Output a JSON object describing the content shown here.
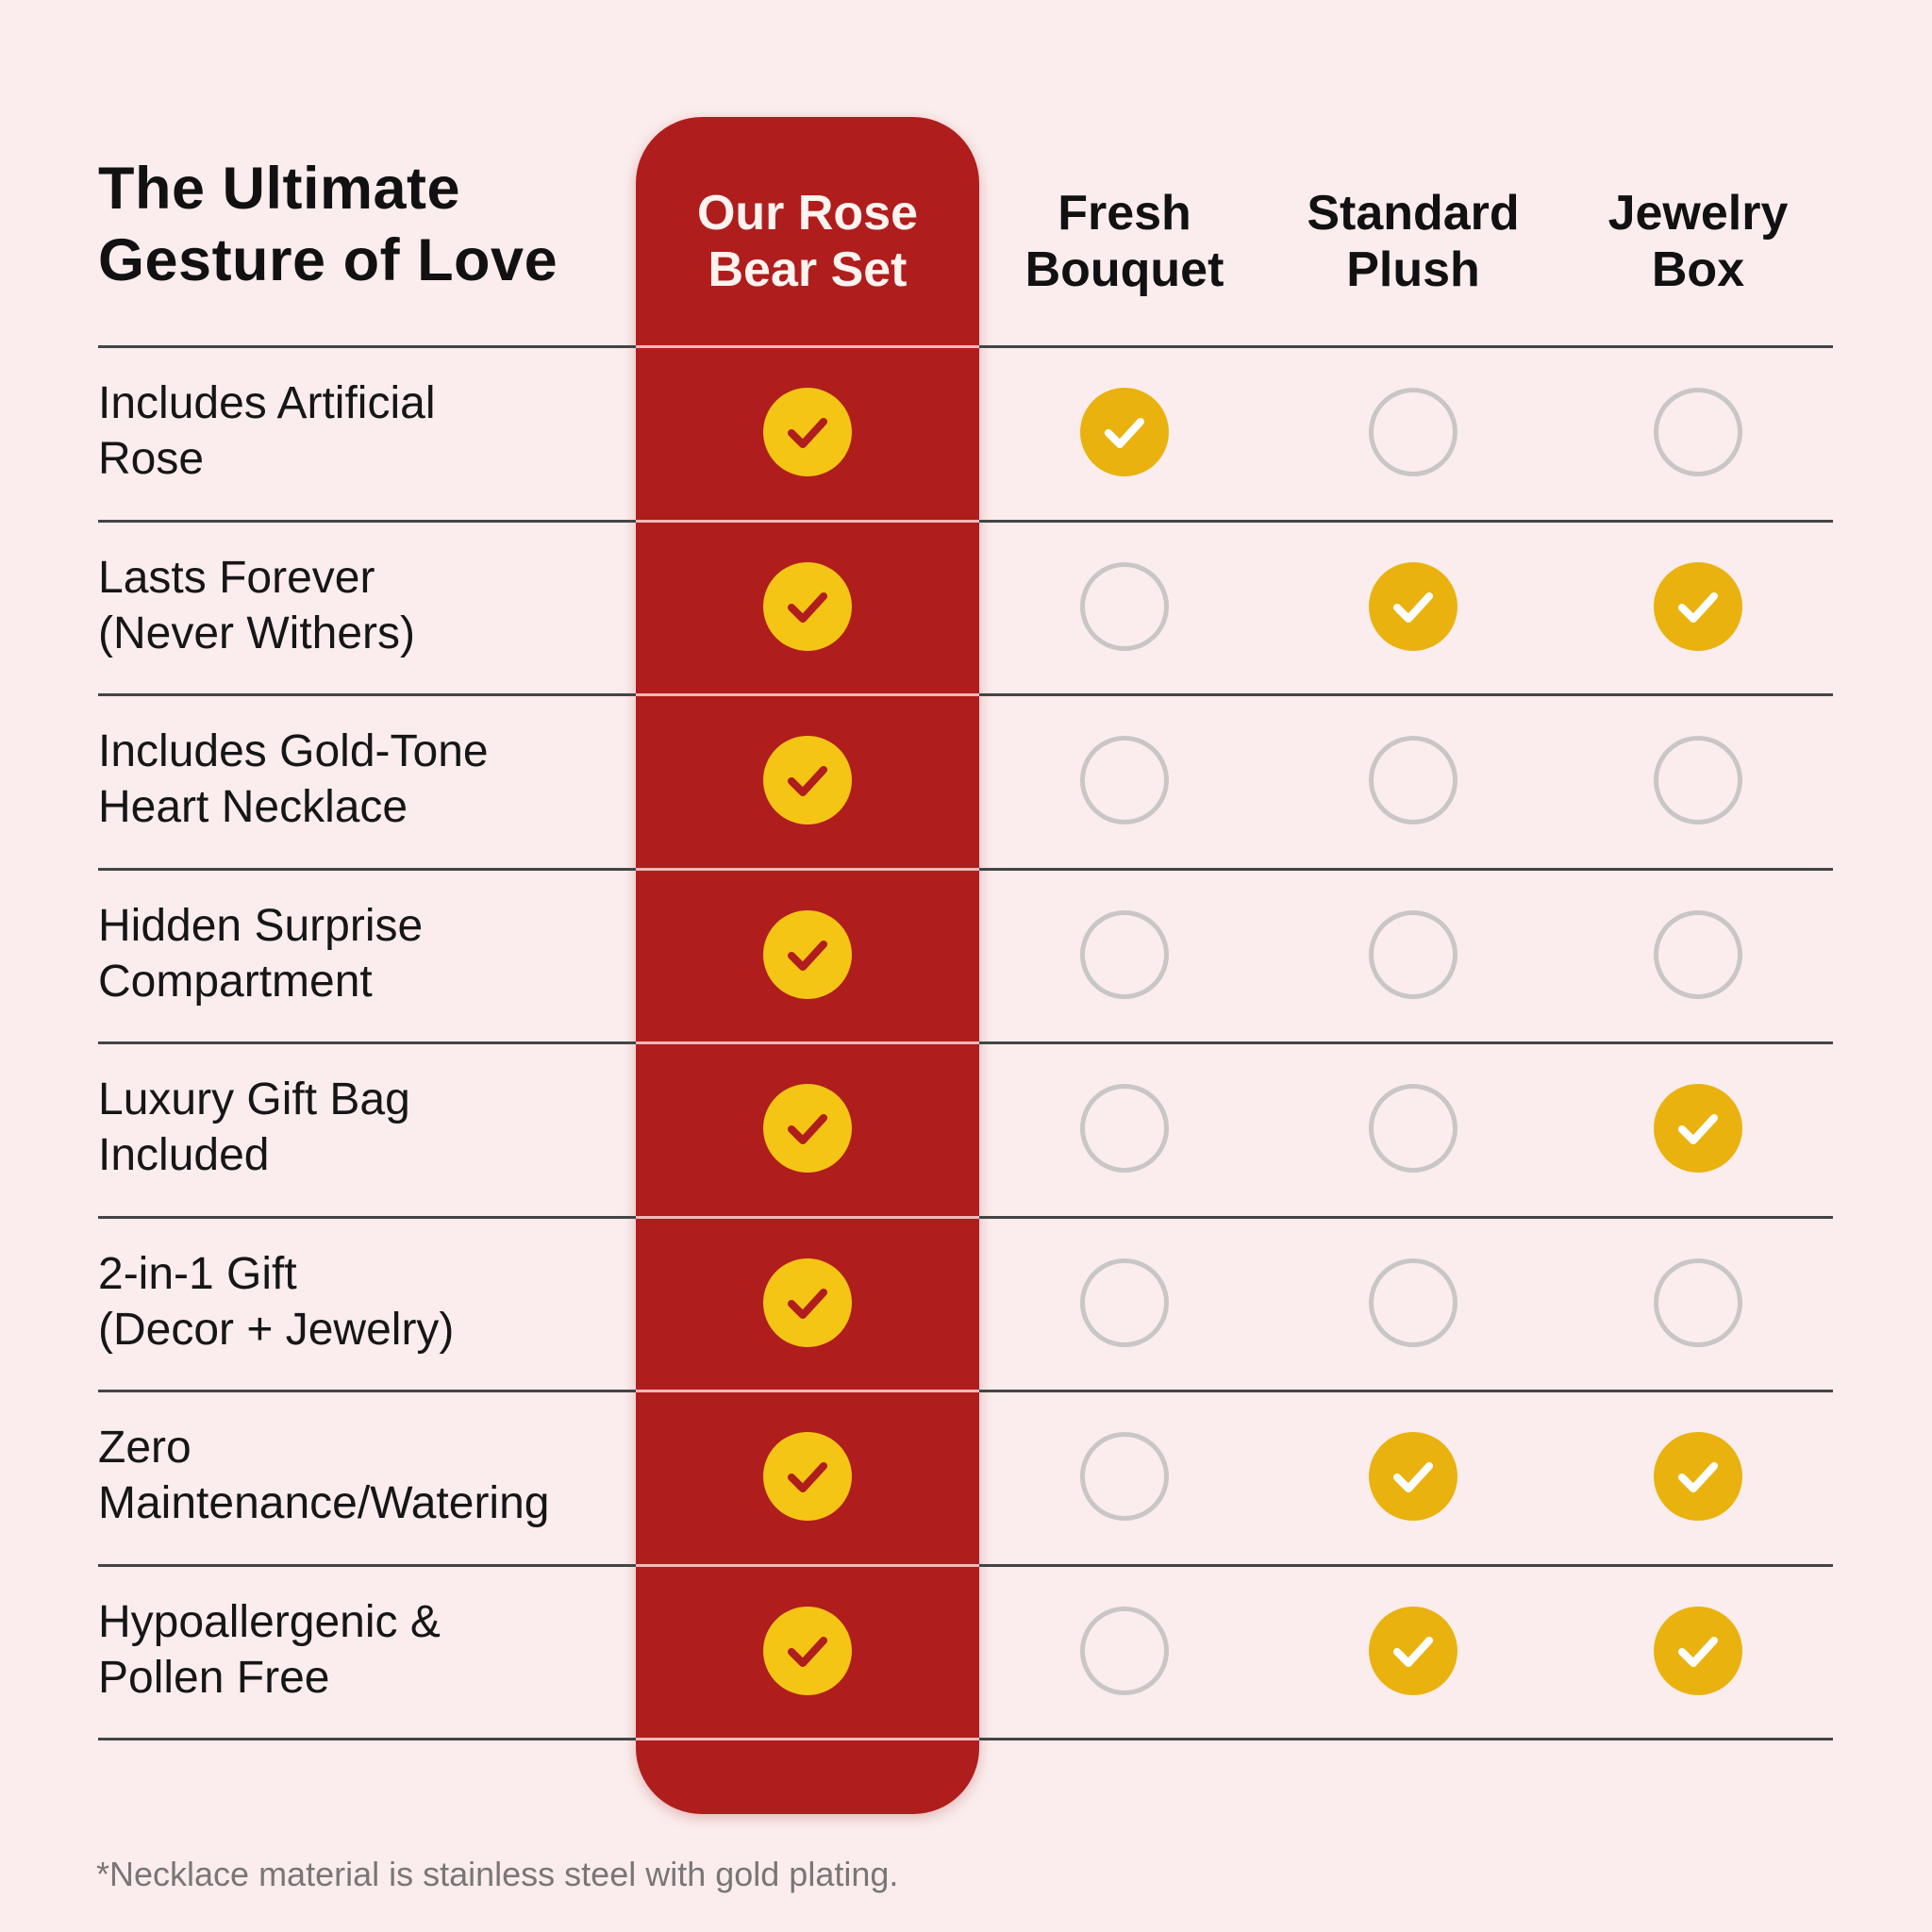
{
  "title_lines": [
    "The Ultimate",
    "Gesture of Love"
  ],
  "columns": [
    {
      "lines": [
        "Our Rose",
        "Bear Set"
      ],
      "highlight": true
    },
    {
      "lines": [
        "Fresh",
        "Bouquet"
      ],
      "highlight": false
    },
    {
      "lines": [
        "Standard",
        "Plush"
      ],
      "highlight": false
    },
    {
      "lines": [
        "Jewelry",
        "Box"
      ],
      "highlight": false
    }
  ],
  "rows": [
    {
      "lines": [
        "Includes Artificial",
        "Rose"
      ],
      "values": [
        true,
        true,
        false,
        false
      ]
    },
    {
      "lines": [
        "Lasts Forever",
        "(Never Withers)"
      ],
      "values": [
        true,
        false,
        true,
        true
      ]
    },
    {
      "lines": [
        "Includes Gold-Tone",
        "Heart Necklace"
      ],
      "values": [
        true,
        false,
        false,
        false
      ]
    },
    {
      "lines": [
        "Hidden Surprise",
        "Compartment"
      ],
      "values": [
        true,
        false,
        false,
        false
      ]
    },
    {
      "lines": [
        "Luxury Gift Bag",
        "Included"
      ],
      "values": [
        true,
        false,
        false,
        true
      ]
    },
    {
      "lines": [
        "2-in-1 Gift",
        "(Decor + Jewelry)"
      ],
      "values": [
        true,
        false,
        false,
        false
      ]
    },
    {
      "lines": [
        "Zero",
        "Maintenance/Watering"
      ],
      "values": [
        true,
        false,
        true,
        true
      ]
    },
    {
      "lines": [
        "Hypoallergenic &",
        "Pollen Free"
      ],
      "values": [
        true,
        false,
        true,
        true
      ]
    }
  ],
  "footnote": "*Necklace material is stainless steel with gold plating.",
  "icons": {
    "included": "check-circle-icon",
    "not_included": "empty-circle-icon"
  },
  "colors": {
    "background": "#fbeded",
    "highlight_column": "#b01d1d",
    "check_fill": "#e9b20f",
    "check_fill_highlight": "#f5c515",
    "check_mark_highlight": "#b01d1d",
    "check_mark": "#ffffff",
    "empty_circle": "#c9c6c6"
  }
}
